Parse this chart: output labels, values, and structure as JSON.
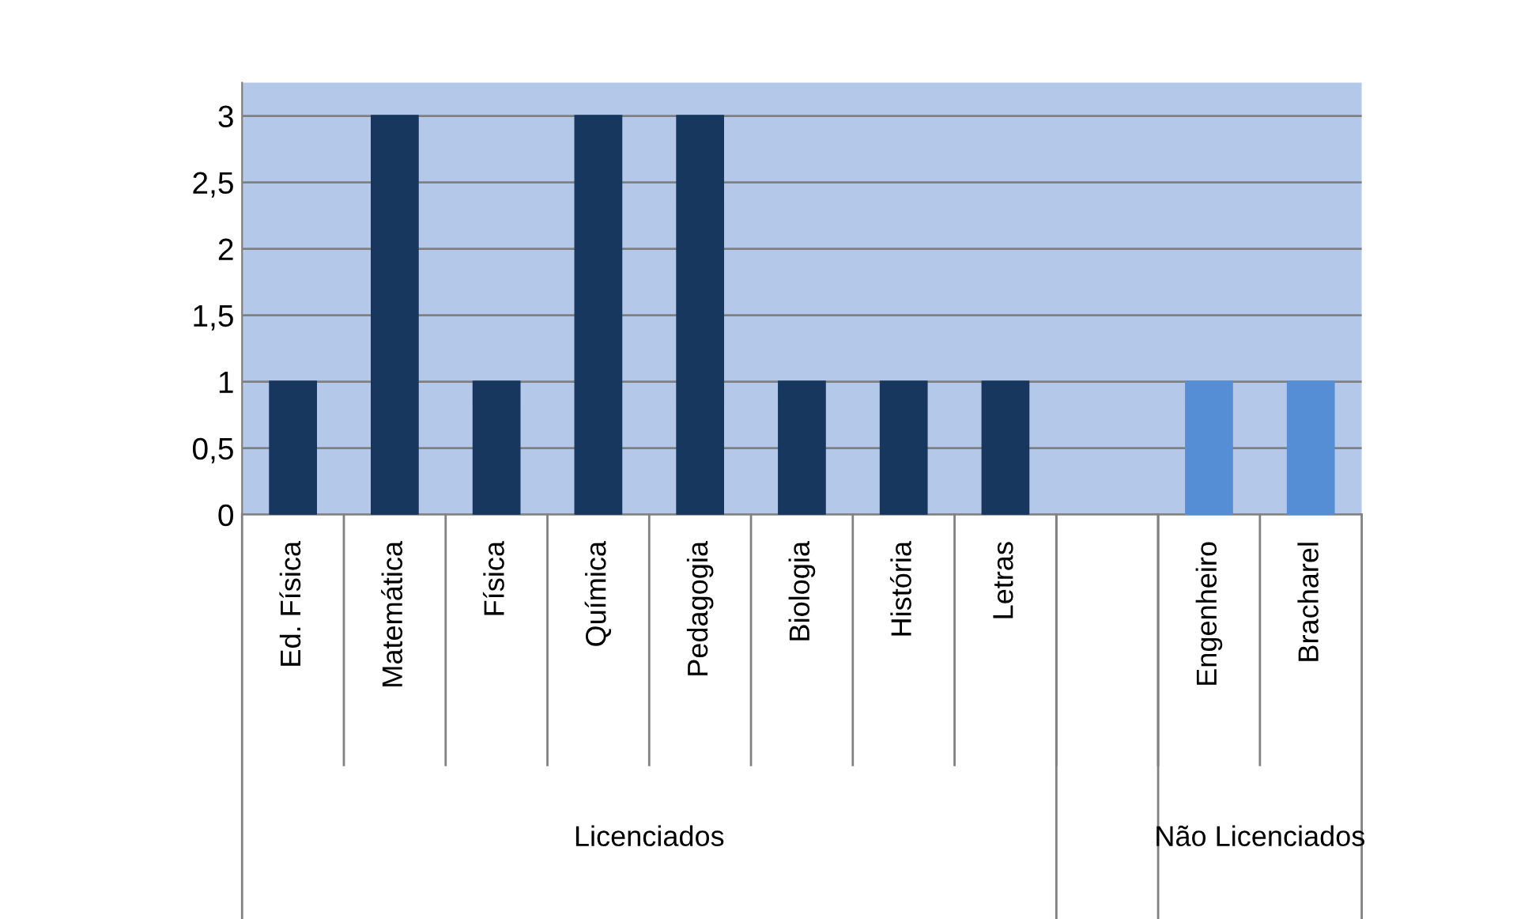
{
  "chart_data": {
    "type": "bar",
    "categories": [
      "Ed. Física",
      "Matemática",
      "Física",
      "Química",
      "Pedagogia",
      "Biologia",
      "História",
      "Letras",
      null,
      "Engenheiro",
      "Bracharel"
    ],
    "values": [
      1,
      3,
      1,
      3,
      3,
      1,
      1,
      1,
      null,
      1,
      1
    ],
    "colors": [
      "#17375e",
      "#17375e",
      "#17375e",
      "#17375e",
      "#17375e",
      "#17375e",
      "#17375e",
      "#17375e",
      "#17375e",
      "#558ed5",
      "#558ed5"
    ],
    "ylim": [
      0,
      3.25
    ],
    "yticks": [
      0,
      {
        "value": 0.5,
        "label": "0,5"
      },
      1,
      {
        "value": 1.5,
        "label": "1,5"
      },
      2,
      {
        "value": 2.5,
        "label": "2,5"
      },
      3
    ],
    "grid": "y",
    "annotations": [
      "Licenciados",
      "Não Licenciados"
    ]
  }
}
